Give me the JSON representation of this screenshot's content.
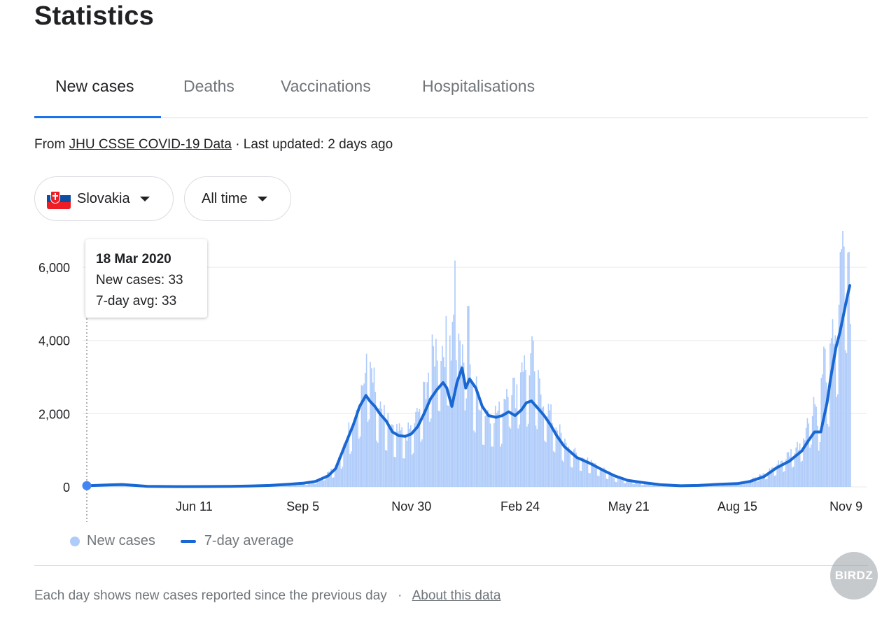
{
  "page": {
    "title": "Statistics"
  },
  "tabs": [
    {
      "label": "New cases",
      "active": true
    },
    {
      "label": "Deaths",
      "active": false
    },
    {
      "label": "Vaccinations",
      "active": false
    },
    {
      "label": "Hospitalisations",
      "active": false
    }
  ],
  "source": {
    "prefix": "From",
    "link_text": "JHU CSSE COVID-19 Data",
    "updated": "· Last updated: 2 days ago"
  },
  "filters": {
    "country": "Slovakia",
    "country_flag": "slovakia-flag-icon",
    "range": "All time"
  },
  "tooltip": {
    "date": "18 Mar 2020",
    "new_cases": "New cases: 33",
    "avg": "7-day avg: 33"
  },
  "legend": {
    "bars": "New cases",
    "line": "7-day average"
  },
  "footer": {
    "note": "Each day shows new cases reported since the previous day",
    "separator": "·",
    "link_text": "About this data"
  },
  "watermark": {
    "text": "BIRDZ"
  },
  "colors": {
    "bar": "#aecbfa",
    "line": "#1967d2",
    "accent": "#1a73e8",
    "grid": "#e8eaed",
    "axis_text": "#202124"
  },
  "chart_data": {
    "type": "bar",
    "x_start": "2020-03-18",
    "x_end": "2021-11-12",
    "ylim": [
      0,
      6900
    ],
    "yticks": [
      0,
      2000,
      4000,
      6000
    ],
    "ytick_labels": [
      "0",
      "2,000",
      "4,000",
      "6,000"
    ],
    "xticks": [
      "2020-06-11",
      "2020-09-05",
      "2020-11-30",
      "2021-02-24",
      "2021-05-21",
      "2021-08-15",
      "2021-11-09"
    ],
    "xtick_labels": [
      "Jun 11",
      "Sep 5",
      "Nov 30",
      "Feb 24",
      "May 21",
      "Aug 15",
      "Nov 9"
    ],
    "grid": true,
    "legend_position": "bottom-left",
    "series": [
      {
        "name": "New cases",
        "kind": "bar",
        "points": [
          [
            "2020-03-18",
            33
          ],
          [
            "2020-04-01",
            55
          ],
          [
            "2020-04-15",
            60
          ],
          [
            "2020-05-01",
            10
          ],
          [
            "2020-06-01",
            10
          ],
          [
            "2020-07-01",
            15
          ],
          [
            "2020-08-01",
            30
          ],
          [
            "2020-08-20",
            60
          ],
          [
            "2020-09-05",
            90
          ],
          [
            "2020-09-15",
            150
          ],
          [
            "2020-09-25",
            420
          ],
          [
            "2020-10-01",
            500
          ],
          [
            "2020-10-05",
            900
          ],
          [
            "2020-10-10",
            1400
          ],
          [
            "2020-10-15",
            2000
          ],
          [
            "2020-10-20",
            2500
          ],
          [
            "2020-10-24",
            3000
          ],
          [
            "2020-10-27",
            3350
          ],
          [
            "2020-10-30",
            3200
          ],
          [
            "2020-11-01",
            2400
          ],
          [
            "2020-11-05",
            2000
          ],
          [
            "2020-11-10",
            1800
          ],
          [
            "2020-11-15",
            1500
          ],
          [
            "2020-11-20",
            1450
          ],
          [
            "2020-11-25",
            1400
          ],
          [
            "2020-11-30",
            1600
          ],
          [
            "2020-12-05",
            2000
          ],
          [
            "2020-12-10",
            2600
          ],
          [
            "2020-12-15",
            3400
          ],
          [
            "2020-12-20",
            3800
          ],
          [
            "2020-12-25",
            3700
          ],
          [
            "2020-12-28",
            4050
          ],
          [
            "2020-12-31",
            4000
          ],
          [
            "2021-01-04",
            6300
          ],
          [
            "2021-01-07",
            3600
          ],
          [
            "2021-01-10",
            3200
          ],
          [
            "2021-01-13",
            5000
          ],
          [
            "2021-01-16",
            3000
          ],
          [
            "2021-01-20",
            2600
          ],
          [
            "2021-01-25",
            2100
          ],
          [
            "2021-02-01",
            2000
          ],
          [
            "2021-02-08",
            2000
          ],
          [
            "2021-02-15",
            3000
          ],
          [
            "2021-02-20",
            2500
          ],
          [
            "2021-02-25",
            3500
          ],
          [
            "2021-03-01",
            3000
          ],
          [
            "2021-03-05",
            3550
          ],
          [
            "2021-03-10",
            2700
          ],
          [
            "2021-03-15",
            2300
          ],
          [
            "2021-03-20",
            1900
          ],
          [
            "2021-03-25",
            1600
          ],
          [
            "2021-04-01",
            1100
          ],
          [
            "2021-04-08",
            900
          ],
          [
            "2021-04-15",
            750
          ],
          [
            "2021-04-22",
            650
          ],
          [
            "2021-05-01",
            450
          ],
          [
            "2021-05-10",
            250
          ],
          [
            "2021-05-21",
            160
          ],
          [
            "2021-06-05",
            70
          ],
          [
            "2021-06-20",
            30
          ],
          [
            "2021-07-05",
            20
          ],
          [
            "2021-07-20",
            50
          ],
          [
            "2021-08-05",
            90
          ],
          [
            "2021-08-15",
            110
          ],
          [
            "2021-08-25",
            200
          ],
          [
            "2021-09-05",
            350
          ],
          [
            "2021-09-15",
            600
          ],
          [
            "2021-09-25",
            900
          ],
          [
            "2021-10-01",
            1100
          ],
          [
            "2021-10-05",
            1300
          ],
          [
            "2021-10-10",
            1800
          ],
          [
            "2021-10-14",
            2400
          ],
          [
            "2021-10-18",
            1800
          ],
          [
            "2021-10-22",
            3500
          ],
          [
            "2021-10-26",
            3000
          ],
          [
            "2021-10-30",
            4200
          ],
          [
            "2021-11-02",
            4600
          ],
          [
            "2021-11-04",
            5500
          ],
          [
            "2021-11-06",
            6400
          ],
          [
            "2021-11-08",
            6800
          ],
          [
            "2021-11-10",
            6500
          ],
          [
            "2021-11-12",
            4900
          ]
        ]
      },
      {
        "name": "7-day average",
        "kind": "line",
        "points": [
          [
            "2020-03-18",
            33
          ],
          [
            "2020-03-25",
            40
          ],
          [
            "2020-04-05",
            55
          ],
          [
            "2020-04-15",
            65
          ],
          [
            "2020-04-25",
            40
          ],
          [
            "2020-05-05",
            15
          ],
          [
            "2020-06-01",
            8
          ],
          [
            "2020-06-20",
            10
          ],
          [
            "2020-07-10",
            15
          ],
          [
            "2020-07-25",
            25
          ],
          [
            "2020-08-10",
            40
          ],
          [
            "2020-08-25",
            70
          ],
          [
            "2020-09-05",
            100
          ],
          [
            "2020-09-15",
            150
          ],
          [
            "2020-09-25",
            300
          ],
          [
            "2020-10-01",
            500
          ],
          [
            "2020-10-08",
            1100
          ],
          [
            "2020-10-15",
            1700
          ],
          [
            "2020-10-20",
            2200
          ],
          [
            "2020-10-25",
            2500
          ],
          [
            "2020-10-28",
            2350
          ],
          [
            "2020-11-01",
            2200
          ],
          [
            "2020-11-05",
            2000
          ],
          [
            "2020-11-10",
            1800
          ],
          [
            "2020-11-15",
            1500
          ],
          [
            "2020-11-20",
            1400
          ],
          [
            "2020-11-25",
            1380
          ],
          [
            "2020-11-30",
            1450
          ],
          [
            "2020-12-05",
            1650
          ],
          [
            "2020-12-10",
            2000
          ],
          [
            "2020-12-15",
            2400
          ],
          [
            "2020-12-20",
            2650
          ],
          [
            "2020-12-25",
            2850
          ],
          [
            "2020-12-28",
            2700
          ],
          [
            "2021-01-01",
            2200
          ],
          [
            "2021-01-05",
            2850
          ],
          [
            "2021-01-09",
            3250
          ],
          [
            "2021-01-12",
            2700
          ],
          [
            "2021-01-15",
            2950
          ],
          [
            "2021-01-20",
            2700
          ],
          [
            "2021-01-25",
            2200
          ],
          [
            "2021-01-30",
            1950
          ],
          [
            "2021-02-05",
            1900
          ],
          [
            "2021-02-10",
            1950
          ],
          [
            "2021-02-15",
            2050
          ],
          [
            "2021-02-20",
            1950
          ],
          [
            "2021-02-25",
            2100
          ],
          [
            "2021-03-01",
            2300
          ],
          [
            "2021-03-05",
            2350
          ],
          [
            "2021-03-10",
            2150
          ],
          [
            "2021-03-15",
            1950
          ],
          [
            "2021-03-20",
            1700
          ],
          [
            "2021-03-25",
            1400
          ],
          [
            "2021-03-31",
            1100
          ],
          [
            "2021-04-05",
            950
          ],
          [
            "2021-04-10",
            800
          ],
          [
            "2021-04-20",
            650
          ],
          [
            "2021-05-01",
            450
          ],
          [
            "2021-05-10",
            300
          ],
          [
            "2021-05-20",
            180
          ],
          [
            "2021-06-01",
            120
          ],
          [
            "2021-06-15",
            60
          ],
          [
            "2021-07-01",
            30
          ],
          [
            "2021-07-15",
            40
          ],
          [
            "2021-08-01",
            70
          ],
          [
            "2021-08-15",
            90
          ],
          [
            "2021-08-25",
            150
          ],
          [
            "2021-09-05",
            280
          ],
          [
            "2021-09-15",
            520
          ],
          [
            "2021-09-25",
            700
          ],
          [
            "2021-10-05",
            980
          ],
          [
            "2021-10-10",
            1250
          ],
          [
            "2021-10-15",
            1500
          ],
          [
            "2021-10-20",
            1500
          ],
          [
            "2021-10-25",
            2300
          ],
          [
            "2021-10-28",
            3000
          ],
          [
            "2021-11-01",
            3800
          ],
          [
            "2021-11-04",
            4200
          ],
          [
            "2021-11-07",
            4700
          ],
          [
            "2021-11-10",
            5200
          ],
          [
            "2021-11-12",
            5500
          ]
        ]
      }
    ],
    "highlight": {
      "date": "2020-03-18",
      "value": 33
    }
  }
}
